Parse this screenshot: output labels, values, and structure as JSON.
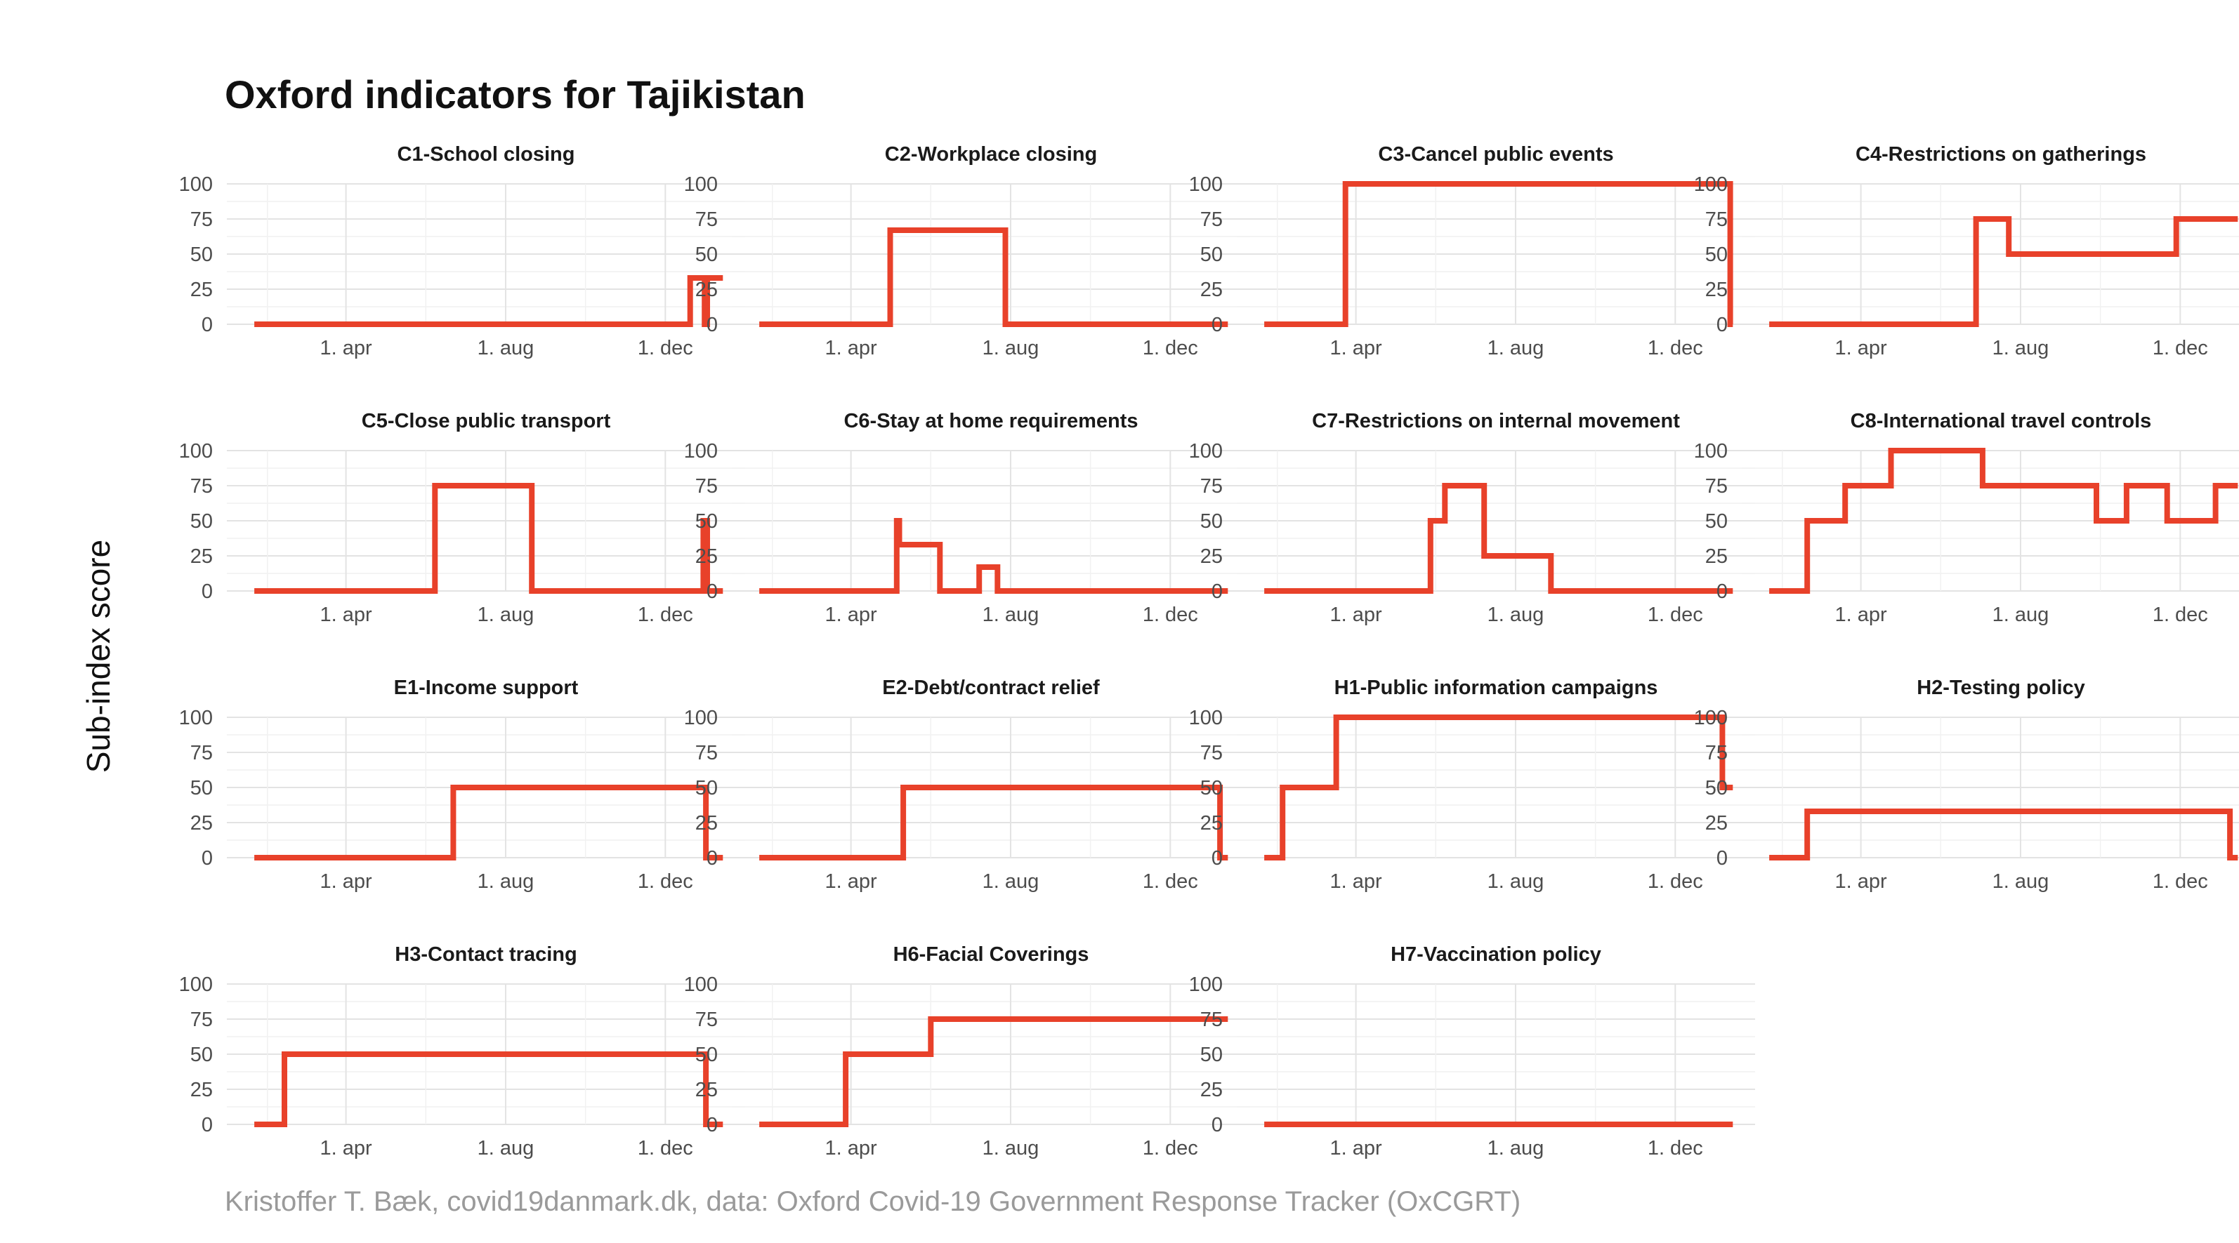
{
  "title": "Oxford indicators for Tajikistan",
  "ylabel": "Sub-index score",
  "caption": "Kristoffer T. Bæk, covid19danmark.dk, data: Oxford Covid-19 Government Response Tracker (OxCGRT)",
  "colors": {
    "line": "#e8412a",
    "grid": "#e3e3e3",
    "text": "#4d4d4d"
  },
  "chart_data": {
    "type": "line",
    "layout": "small-multiples",
    "ylim": [
      0,
      100
    ],
    "yticks": [
      0,
      25,
      50,
      75,
      100
    ],
    "xlim": [
      "2020-01-01",
      "2021-01-31"
    ],
    "xticks": [
      {
        "date": "2020-04-01",
        "label": "1. apr"
      },
      {
        "date": "2020-08-01",
        "label": "1. aug"
      },
      {
        "date": "2020-12-01",
        "label": "1. dec"
      }
    ],
    "panels": [
      {
        "title": "C1-School closing",
        "points": [
          [
            "2020-01-22",
            0
          ],
          [
            "2020-12-20",
            0
          ],
          [
            "2020-12-20",
            33
          ],
          [
            "2020-12-31",
            33
          ],
          [
            "2020-12-31",
            0
          ],
          [
            "2021-01-02",
            0
          ],
          [
            "2021-01-02",
            33
          ],
          [
            "2021-01-14",
            33
          ]
        ]
      },
      {
        "title": "C2-Workplace closing",
        "points": [
          [
            "2020-01-22",
            0
          ],
          [
            "2020-05-01",
            0
          ],
          [
            "2020-05-01",
            67
          ],
          [
            "2020-07-28",
            67
          ],
          [
            "2020-07-28",
            0
          ],
          [
            "2021-01-14",
            0
          ]
        ]
      },
      {
        "title": "C3-Cancel public events",
        "points": [
          [
            "2020-01-22",
            0
          ],
          [
            "2020-03-24",
            0
          ],
          [
            "2020-03-24",
            100
          ],
          [
            "2021-01-12",
            100
          ],
          [
            "2021-01-12",
            0
          ],
          [
            "2021-01-14",
            0
          ]
        ]
      },
      {
        "title": "C4-Restrictions on gatherings",
        "points": [
          [
            "2020-01-22",
            0
          ],
          [
            "2020-06-28",
            0
          ],
          [
            "2020-06-28",
            75
          ],
          [
            "2020-07-23",
            75
          ],
          [
            "2020-07-23",
            50
          ],
          [
            "2020-11-28",
            50
          ],
          [
            "2020-11-28",
            75
          ],
          [
            "2021-01-14",
            75
          ]
        ]
      },
      {
        "title": "C5-Close public transport",
        "points": [
          [
            "2020-01-22",
            0
          ],
          [
            "2020-06-08",
            0
          ],
          [
            "2020-06-08",
            75
          ],
          [
            "2020-08-21",
            75
          ],
          [
            "2020-08-21",
            0
          ],
          [
            "2020-12-30",
            0
          ],
          [
            "2020-12-30",
            50
          ],
          [
            "2021-01-02",
            50
          ],
          [
            "2021-01-02",
            0
          ],
          [
            "2021-01-14",
            0
          ]
        ]
      },
      {
        "title": "C6-Stay at home requirements",
        "points": [
          [
            "2020-01-22",
            0
          ],
          [
            "2020-05-06",
            0
          ],
          [
            "2020-05-06",
            50
          ],
          [
            "2020-05-08",
            50
          ],
          [
            "2020-05-08",
            33
          ],
          [
            "2020-06-08",
            33
          ],
          [
            "2020-06-08",
            0
          ],
          [
            "2020-07-08",
            0
          ],
          [
            "2020-07-08",
            17
          ],
          [
            "2020-07-22",
            17
          ],
          [
            "2020-07-22",
            0
          ],
          [
            "2021-01-14",
            0
          ]
        ]
      },
      {
        "title": "C7-Restrictions on internal movement",
        "points": [
          [
            "2020-01-22",
            0
          ],
          [
            "2020-05-28",
            0
          ],
          [
            "2020-05-28",
            50
          ],
          [
            "2020-06-08",
            50
          ],
          [
            "2020-06-08",
            75
          ],
          [
            "2020-07-08",
            75
          ],
          [
            "2020-07-08",
            25
          ],
          [
            "2020-08-28",
            25
          ],
          [
            "2020-08-28",
            0
          ],
          [
            "2021-01-14",
            0
          ]
        ]
      },
      {
        "title": "C8-International travel controls",
        "points": [
          [
            "2020-01-22",
            0
          ],
          [
            "2020-02-20",
            0
          ],
          [
            "2020-02-20",
            50
          ],
          [
            "2020-03-20",
            50
          ],
          [
            "2020-03-20",
            75
          ],
          [
            "2020-04-24",
            75
          ],
          [
            "2020-04-24",
            100
          ],
          [
            "2020-07-03",
            100
          ],
          [
            "2020-07-03",
            75
          ],
          [
            "2020-09-28",
            75
          ],
          [
            "2020-09-28",
            50
          ],
          [
            "2020-10-21",
            50
          ],
          [
            "2020-10-21",
            75
          ],
          [
            "2020-11-21",
            75
          ],
          [
            "2020-11-21",
            50
          ],
          [
            "2020-12-28",
            50
          ],
          [
            "2020-12-28",
            75
          ],
          [
            "2021-01-14",
            75
          ]
        ]
      },
      {
        "title": "E1-Income support",
        "points": [
          [
            "2020-01-22",
            0
          ],
          [
            "2020-06-22",
            0
          ],
          [
            "2020-06-22",
            50
          ],
          [
            "2021-01-01",
            50
          ],
          [
            "2021-01-01",
            0
          ],
          [
            "2021-01-14",
            0
          ]
        ]
      },
      {
        "title": "E2-Debt/contract relief",
        "points": [
          [
            "2020-01-22",
            0
          ],
          [
            "2020-05-11",
            0
          ],
          [
            "2020-05-11",
            50
          ],
          [
            "2021-01-08",
            50
          ],
          [
            "2021-01-08",
            0
          ],
          [
            "2021-01-14",
            0
          ]
        ]
      },
      {
        "title": "H1-Public information campaigns",
        "points": [
          [
            "2020-01-22",
            0
          ],
          [
            "2020-02-05",
            0
          ],
          [
            "2020-02-05",
            50
          ],
          [
            "2020-03-17",
            50
          ],
          [
            "2020-03-17",
            100
          ],
          [
            "2021-01-06",
            100
          ],
          [
            "2021-01-06",
            50
          ],
          [
            "2021-01-14",
            50
          ]
        ]
      },
      {
        "title": "H2-Testing policy",
        "points": [
          [
            "2020-01-22",
            0
          ],
          [
            "2020-02-20",
            0
          ],
          [
            "2020-02-20",
            33
          ],
          [
            "2021-01-08",
            33
          ],
          [
            "2021-01-08",
            0
          ],
          [
            "2021-01-14",
            0
          ]
        ]
      },
      {
        "title": "H3-Contact tracing",
        "points": [
          [
            "2020-01-22",
            0
          ],
          [
            "2020-02-14",
            0
          ],
          [
            "2020-02-14",
            50
          ],
          [
            "2021-01-01",
            50
          ],
          [
            "2021-01-01",
            0
          ],
          [
            "2021-01-14",
            0
          ]
        ]
      },
      {
        "title": "H6-Facial Coverings",
        "points": [
          [
            "2020-01-22",
            0
          ],
          [
            "2020-03-28",
            0
          ],
          [
            "2020-03-28",
            50
          ],
          [
            "2020-06-01",
            50
          ],
          [
            "2020-06-01",
            75
          ],
          [
            "2021-01-14",
            75
          ]
        ]
      },
      {
        "title": "H7-Vaccination policy",
        "points": [
          [
            "2020-01-22",
            0
          ],
          [
            "2021-01-14",
            0
          ]
        ]
      }
    ]
  }
}
